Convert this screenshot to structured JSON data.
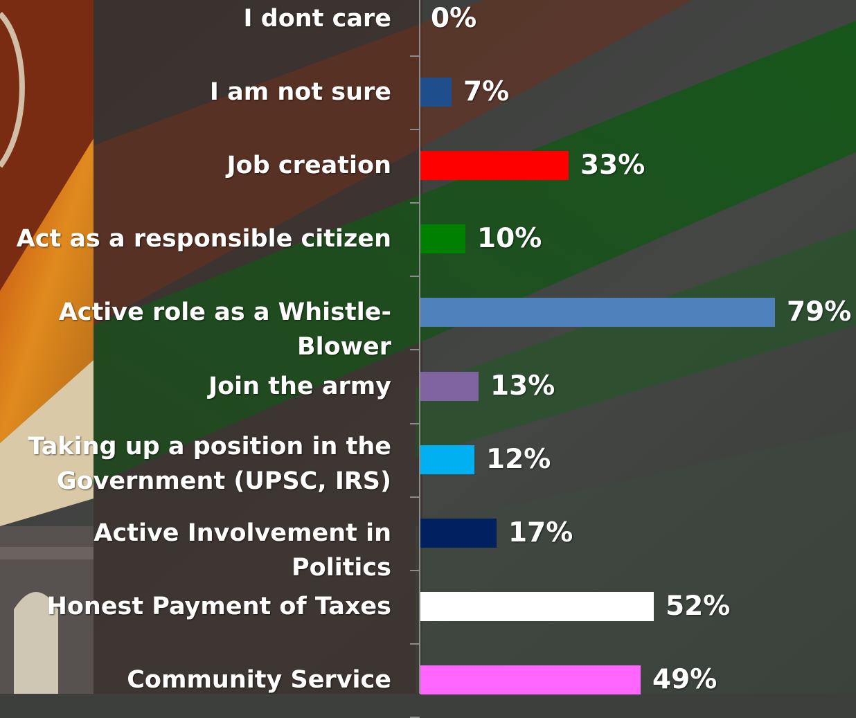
{
  "chart_data": {
    "type": "bar",
    "orientation": "horizontal",
    "categories": [
      "I dont care",
      "I am not sure",
      "Job creation",
      "Act as a responsible citizen",
      "Active role as a Whistle-Blower",
      "Join the army",
      "Taking up a position in the\nGovernment (UPSC, IRS)",
      "Active Involvement in Politics",
      "Honest Payment of Taxes",
      "Community Service"
    ],
    "values": [
      0,
      7,
      33,
      10,
      79,
      13,
      12,
      17,
      52,
      49
    ],
    "value_labels": [
      "0%",
      "7%",
      "33%",
      "10%",
      "79%",
      "13%",
      "12%",
      "17%",
      "52%",
      "49%"
    ],
    "bar_colors": [
      "#1f4e8c",
      "#1f4e8c",
      "#ff0000",
      "#008000",
      "#4f81bd",
      "#8064a2",
      "#00b0f0",
      "#002060",
      "#ffffff",
      "#ff66ff"
    ],
    "unit": "%",
    "xlim": [
      0,
      100
    ],
    "grid": false
  }
}
